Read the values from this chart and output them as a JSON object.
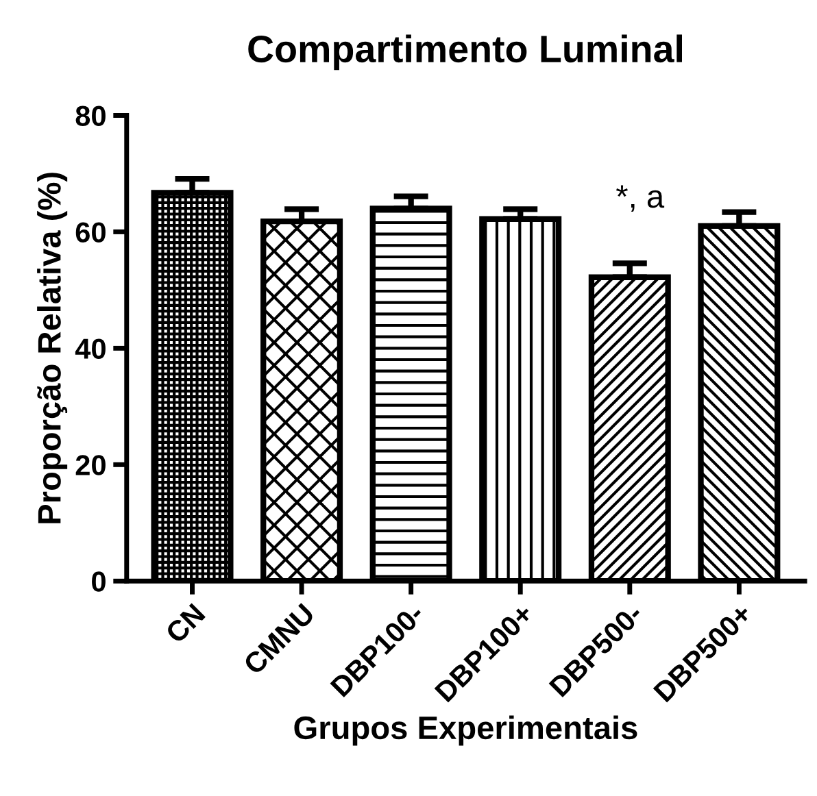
{
  "chart_data": {
    "type": "bar",
    "title": "Compartimento Luminal",
    "xlabel": "Grupos Experimentais",
    "ylabel": "Proporção Relativa (%)",
    "categories": [
      "CN",
      "CMNU",
      "DBP100-",
      "DBP100+",
      "DBP500-",
      "DBP500+"
    ],
    "values": [
      66.7,
      61.8,
      64.0,
      62.2,
      52.2,
      61.0
    ],
    "errors": [
      [
        66.7,
        69.1
      ],
      [
        61.8,
        63.9
      ],
      [
        64.0,
        66.1
      ],
      [
        62.2,
        63.9
      ],
      [
        52.2,
        54.6
      ],
      [
        61.0,
        63.4
      ]
    ],
    "colors": [
      "#000000",
      "#000000",
      "#000000",
      "#000000",
      "#000000",
      "#000000"
    ],
    "ylim": [
      0,
      80
    ],
    "yticks": [
      0,
      20,
      40,
      60,
      80
    ],
    "annotations": [
      "*, a"
    ]
  }
}
